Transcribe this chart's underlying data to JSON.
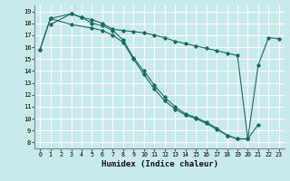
{
  "xlabel": "Humidex (Indice chaleur)",
  "bg_color": "#c8eaea",
  "grid_color": "#ffffff",
  "line_color": "#1a6b5a",
  "xlim": [
    -0.5,
    23.5
  ],
  "ylim": [
    7.5,
    19.5
  ],
  "xticks": [
    0,
    1,
    2,
    3,
    4,
    5,
    6,
    7,
    8,
    9,
    10,
    11,
    12,
    13,
    14,
    15,
    16,
    17,
    18,
    19,
    20,
    21,
    22,
    23
  ],
  "yticks": [
    8,
    9,
    10,
    11,
    12,
    13,
    14,
    15,
    16,
    17,
    18,
    19
  ],
  "line1_x": [
    0,
    1,
    3,
    4,
    5,
    6,
    7,
    8,
    9,
    10,
    11,
    12,
    13,
    14,
    15,
    16,
    17,
    18,
    19,
    20,
    21,
    22,
    23
  ],
  "line1_y": [
    15.8,
    18.4,
    18.8,
    18.5,
    18.3,
    18.0,
    17.5,
    17.4,
    17.3,
    17.2,
    17.0,
    16.8,
    16.5,
    16.3,
    16.1,
    15.9,
    15.7,
    15.5,
    15.3,
    8.3,
    14.5,
    16.8,
    16.7
  ],
  "line2_x": [
    1,
    3,
    4,
    5,
    6,
    7,
    8,
    9,
    10,
    11,
    12,
    13,
    14,
    15,
    16,
    17,
    18,
    19,
    20,
    21
  ],
  "line2_y": [
    17.9,
    18.8,
    18.5,
    18.0,
    17.8,
    17.4,
    16.6,
    15.1,
    14.0,
    12.8,
    11.8,
    11.0,
    10.4,
    10.1,
    9.7,
    9.2,
    8.6,
    8.3,
    8.3,
    9.5
  ],
  "line3_x": [
    0,
    1,
    3,
    5,
    6,
    7,
    8,
    9,
    10,
    11,
    12,
    13,
    14,
    15,
    16,
    17,
    18,
    19,
    20
  ],
  "line3_y": [
    15.8,
    18.4,
    17.9,
    17.6,
    17.4,
    17.0,
    16.4,
    15.0,
    13.7,
    12.5,
    11.5,
    10.8,
    10.3,
    10.0,
    9.6,
    9.1,
    8.6,
    8.3,
    8.3
  ]
}
